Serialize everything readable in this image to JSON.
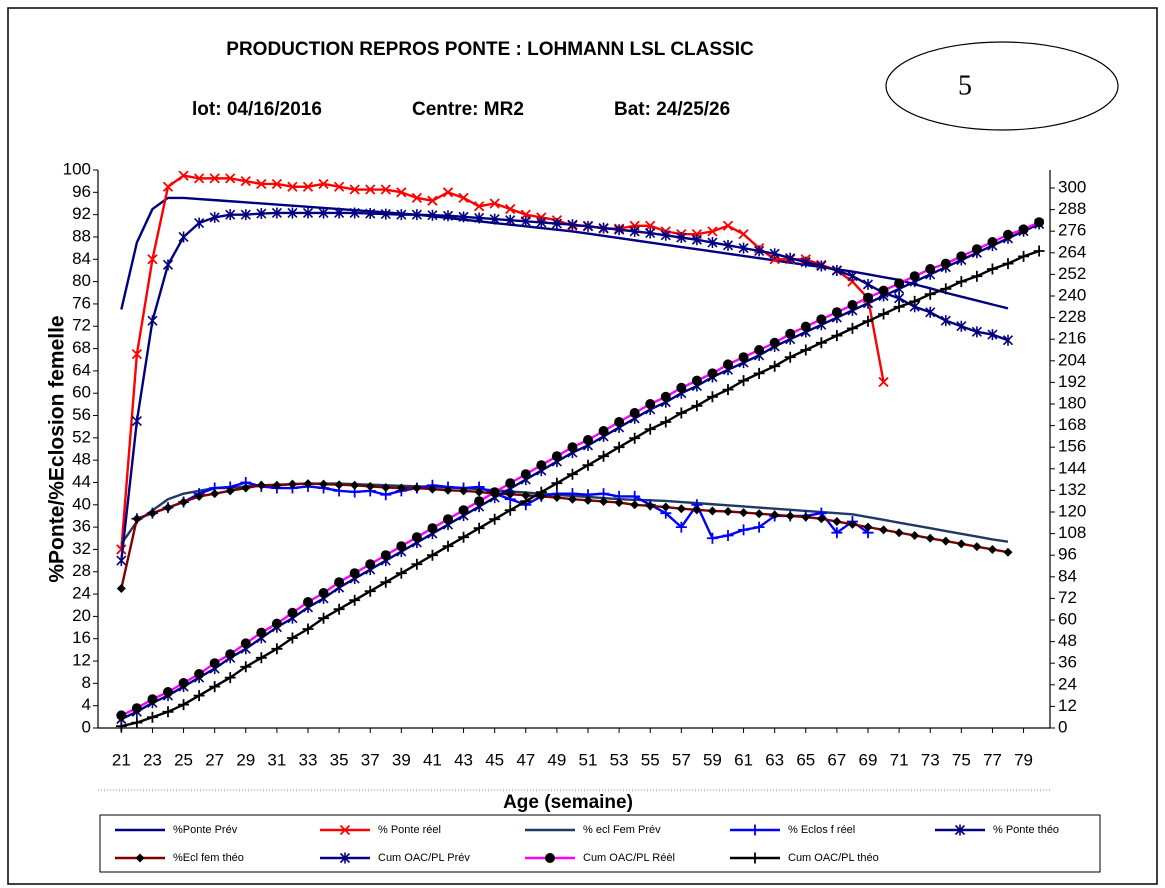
{
  "chart_data": {
    "type": "line",
    "title": "PRODUCTION REPROS PONTE : LOHMANN LSL CLASSIC",
    "subtitle": [
      "lot: 04/16/2016",
      "Centre: MR2",
      "Bat: 24/25/26"
    ],
    "annotations": [
      {
        "text": "5"
      }
    ],
    "x_label": "Age (semaine)",
    "y_label": "%Ponte/%Eclosion femelle",
    "x": [
      21,
      22,
      23,
      24,
      25,
      26,
      27,
      28,
      29,
      30,
      31,
      32,
      33,
      34,
      35,
      36,
      37,
      38,
      39,
      40,
      41,
      42,
      43,
      44,
      45,
      46,
      47,
      48,
      49,
      50,
      51,
      52,
      53,
      54,
      55,
      56,
      57,
      58,
      59,
      60,
      61,
      62,
      63,
      64,
      65,
      66,
      67,
      68,
      69,
      70,
      71,
      72,
      73,
      74,
      75,
      76,
      77,
      78,
      79,
      80
    ],
    "xlim": [
      19.5,
      80.7
    ],
    "xticks": [
      21,
      23,
      25,
      27,
      29,
      31,
      33,
      35,
      37,
      39,
      41,
      43,
      45,
      47,
      49,
      51,
      53,
      55,
      57,
      59,
      61,
      63,
      65,
      67,
      69,
      71,
      73,
      75,
      77,
      79
    ],
    "ylim": [
      0,
      100
    ],
    "yticks": [
      0,
      4,
      8,
      12,
      16,
      20,
      24,
      28,
      32,
      36,
      40,
      44,
      48,
      52,
      56,
      60,
      64,
      68,
      72,
      76,
      80,
      84,
      88,
      92,
      96,
      100
    ],
    "y2lim": [
      0,
      310
    ],
    "y2ticks": [
      0,
      12,
      24,
      36,
      48,
      60,
      72,
      84,
      96,
      108,
      120,
      132,
      144,
      156,
      168,
      180,
      192,
      204,
      216,
      228,
      240,
      252,
      264,
      276,
      288,
      300
    ],
    "series": [
      {
        "name": "%Ponte Prév",
        "color": "#000080",
        "marker": "none",
        "values": [
          75,
          87,
          93,
          95,
          95,
          94.8,
          94.6,
          94.4,
          94.2,
          94,
          93.8,
          93.6,
          93.4,
          93.2,
          93,
          92.8,
          92.6,
          92.4,
          92.2,
          92,
          91.7,
          91.4,
          91.1,
          90.8,
          90.5,
          90.2,
          89.9,
          89.6,
          89.3,
          89,
          88.6,
          88.2,
          87.8,
          87.4,
          87,
          86.6,
          86.2,
          85.8,
          85.4,
          85,
          84.6,
          84.2,
          83.8,
          83.4,
          83,
          82.6,
          82.2,
          81.8,
          81.3,
          80.8,
          80.3,
          79.5,
          78.8,
          78,
          77.3,
          76.6,
          75.9,
          75.2,
          null,
          null
        ]
      },
      {
        "name": "% Ponte réel",
        "color": "#ff0000",
        "marker": "x",
        "marker_color": "#ff0000",
        "values": [
          32,
          67,
          84,
          97,
          99,
          98.5,
          98.5,
          98.5,
          98,
          97.5,
          97.5,
          97,
          97,
          97.5,
          97,
          96.5,
          96.5,
          96.5,
          96,
          95,
          94.5,
          96,
          95,
          93.5,
          94,
          93,
          92,
          91.5,
          91,
          90,
          90,
          89.5,
          89.5,
          90,
          90,
          89,
          88.5,
          88.5,
          89,
          90,
          88.5,
          86,
          84,
          84,
          84,
          83,
          82,
          80,
          77,
          62,
          null,
          null,
          null,
          null,
          null,
          null,
          null,
          null,
          null,
          null
        ]
      },
      {
        "name": "% ecl Fem Prév",
        "color": "#1f3864",
        "marker": "none",
        "values": [
          33,
          37,
          39,
          41,
          42,
          42.5,
          43,
          43,
          43.3,
          43.5,
          43.6,
          43.7,
          43.8,
          43.8,
          43.8,
          43.7,
          43.6,
          43.5,
          43.4,
          43.3,
          43.2,
          43.1,
          43,
          42.8,
          42.6,
          42.4,
          42.2,
          42,
          41.8,
          41.6,
          41.4,
          41.2,
          41,
          40.9,
          40.8,
          40.7,
          40.5,
          40.3,
          40.1,
          39.9,
          39.7,
          39.5,
          39.3,
          39.1,
          38.9,
          38.7,
          38.5,
          38.3,
          37.8,
          37.3,
          36.8,
          36.3,
          35.8,
          35.3,
          34.8,
          34.3,
          33.8,
          33.4,
          null,
          null
        ]
      },
      {
        "name": "% Eclos f réel",
        "color": "#0000ff",
        "marker": "plus",
        "marker_color": "#0000ff",
        "values": [
          null,
          37.5,
          38.5,
          39.5,
          40.5,
          42,
          43,
          43.2,
          44,
          43.3,
          43,
          43,
          43.3,
          43,
          42.5,
          42.3,
          42.5,
          41.8,
          42.5,
          43,
          43.5,
          43.2,
          43,
          43.2,
          42,
          41,
          40,
          41.5,
          42,
          42,
          41.8,
          42,
          41.5,
          41.5,
          40,
          38.5,
          36,
          40,
          34,
          34.5,
          35.5,
          36,
          38,
          38,
          38,
          38.5,
          35,
          37,
          35,
          null,
          null,
          null,
          null,
          null,
          null,
          null,
          null,
          null,
          null,
          null
        ]
      },
      {
        "name": "% Ponte théo",
        "color": "#000080",
        "marker": "star",
        "marker_color": "#000080",
        "values": [
          30,
          55,
          73,
          83,
          88,
          90.5,
          91.5,
          92,
          92,
          92.2,
          92.3,
          92.3,
          92.3,
          92.3,
          92.3,
          92.3,
          92.2,
          92.1,
          92,
          92,
          91.9,
          91.8,
          91.6,
          91.4,
          91.2,
          91,
          90.8,
          90.6,
          90.4,
          90.2,
          89.9,
          89.6,
          89.3,
          89,
          88.7,
          88.3,
          87.9,
          87.5,
          87,
          86.5,
          86,
          85.5,
          85,
          84.2,
          83.5,
          82.8,
          82,
          81,
          79.5,
          78,
          77,
          75.5,
          74.5,
          73,
          72,
          71,
          70.5,
          69.5,
          null,
          null
        ]
      },
      {
        "name": "%Ecl fem théo",
        "color": "#800000",
        "marker": "diamond",
        "marker_color": "#000000",
        "values": [
          25,
          37.5,
          38.5,
          39.5,
          40.5,
          41.5,
          42,
          42.5,
          43,
          43.5,
          43.5,
          43.7,
          43.8,
          43.7,
          43.6,
          43.5,
          43.3,
          43.1,
          43,
          43,
          42.8,
          42.6,
          42.5,
          42.3,
          42,
          41.9,
          41.7,
          41.5,
          41.3,
          41,
          40.8,
          40.6,
          40.4,
          40,
          39.8,
          39.6,
          39.3,
          39.1,
          38.9,
          38.8,
          38.6,
          38.4,
          38.2,
          38,
          37.8,
          37.5,
          37,
          36.5,
          36,
          35.5,
          35,
          34.5,
          34,
          33.5,
          33,
          32.5,
          32,
          31.5,
          null,
          null
        ]
      },
      {
        "name": "Cum OAC/PL Prév",
        "color": "#000080",
        "marker": "star",
        "marker_color": "#000080",
        "axis": "y2",
        "values": [
          5,
          9,
          14,
          18,
          23,
          28,
          33,
          39,
          44,
          50,
          56,
          61,
          67,
          72,
          78,
          83,
          88,
          93,
          98,
          103,
          108,
          113,
          118,
          123,
          128,
          133,
          138,
          143,
          148,
          153,
          157,
          162,
          167,
          172,
          177,
          181,
          186,
          190,
          195,
          199,
          203,
          207,
          212,
          216,
          220,
          224,
          228,
          232,
          236,
          240,
          244,
          248,
          252,
          256,
          260,
          264,
          268,
          272,
          276,
          280
        ]
      },
      {
        "name": "Cum OAC/PL Réèl",
        "color": "#ff00ff",
        "marker": "circle",
        "marker_color": "#000000",
        "axis": "y2",
        "values": [
          7,
          11,
          16,
          20,
          25,
          30,
          36,
          41,
          47,
          53,
          58,
          64,
          70,
          75,
          81,
          86,
          91,
          96,
          101,
          106,
          111,
          116,
          121,
          126,
          131,
          136,
          141,
          146,
          151,
          156,
          160,
          165,
          170,
          175,
          180,
          184,
          189,
          193,
          197,
          202,
          206,
          210,
          214,
          219,
          223,
          227,
          231,
          235,
          239,
          243,
          247,
          251,
          255,
          258,
          262,
          266,
          270,
          274,
          277,
          281
        ]
      },
      {
        "name": "Cum OAC/PL théo",
        "color": "#000000",
        "marker": "plus",
        "marker_color": "#000000",
        "axis": "y2",
        "values": [
          1,
          3,
          6,
          9,
          13,
          18,
          23,
          28,
          34,
          39,
          44,
          50,
          55,
          61,
          66,
          71,
          76,
          81,
          86,
          91,
          96,
          101,
          106,
          111,
          116,
          121,
          126,
          131,
          136,
          141,
          146,
          151,
          156,
          161,
          166,
          170,
          175,
          179,
          184,
          188,
          193,
          197,
          201,
          206,
          210,
          214,
          218,
          222,
          226,
          230,
          234,
          237,
          241,
          244,
          248,
          251,
          255,
          258,
          262,
          265
        ]
      }
    ]
  }
}
